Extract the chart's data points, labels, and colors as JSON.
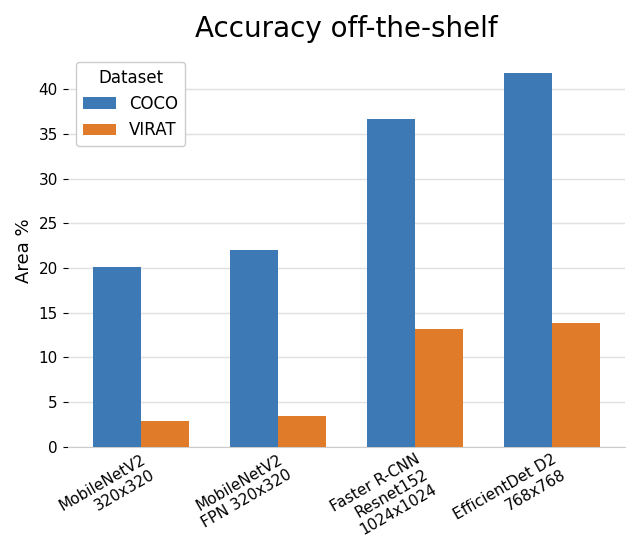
{
  "title": "Accuracy off-the-shelf",
  "ylabel": "Area %",
  "categories": [
    "MobileNetV2\n320x320",
    "MobileNetV2\nFPN 320x320",
    "Faster R-CNN\nResnet152\n1024x1024",
    "EfficientDet D2\n768x768"
  ],
  "coco_values": [
    20.1,
    22.0,
    36.7,
    41.8
  ],
  "virat_values": [
    2.9,
    3.5,
    13.2,
    13.9
  ],
  "coco_color": "#3d7ab5",
  "virat_color": "#e07b2a",
  "ylim": [
    0,
    44
  ],
  "yticks": [
    0,
    5,
    10,
    15,
    20,
    25,
    30,
    35,
    40
  ],
  "legend_title": "Dataset",
  "legend_labels": [
    "COCO",
    "VIRAT"
  ],
  "bar_width": 0.35,
  "background_color": "#ffffff",
  "grid_color": "#e0e0e0",
  "title_fontsize": 20,
  "label_fontsize": 13,
  "tick_fontsize": 11,
  "legend_fontsize": 12
}
